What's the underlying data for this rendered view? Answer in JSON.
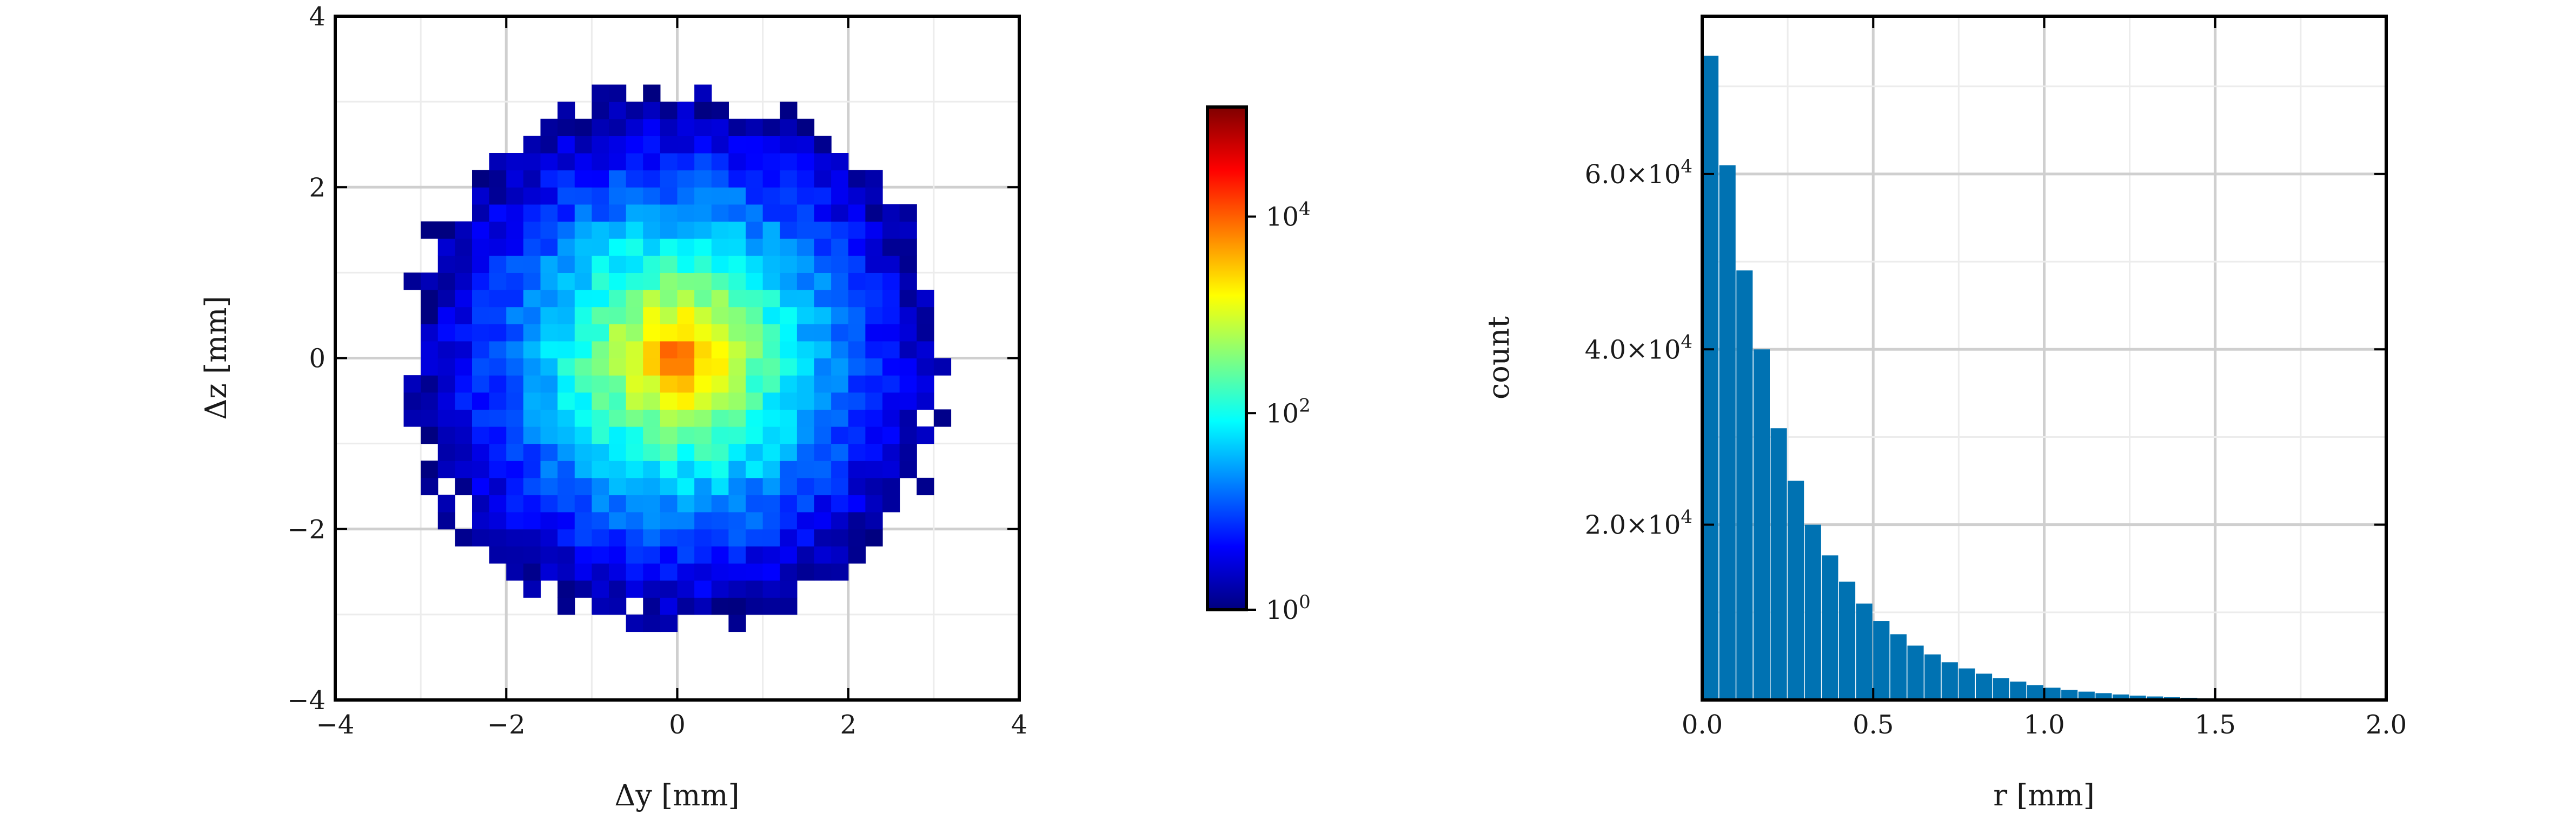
{
  "chart_data": [
    {
      "type": "heatmap",
      "xlabel": "Δy [mm]",
      "ylabel": "Δz [mm]",
      "xlim": [
        -4,
        4
      ],
      "ylim": [
        -4,
        4
      ],
      "xticks": [
        "−4",
        "−2",
        "0",
        "2",
        "4"
      ],
      "yticks": [
        "−4",
        "−2",
        "0",
        "2",
        "4"
      ],
      "grid": true,
      "bin_size_mm": 0.2,
      "distribution": {
        "shape": "2D Gaussian-like core with heavy tails",
        "center": [
          0,
          0
        ],
        "peak_count": 130000,
        "extent_radius_mm": 3.2
      },
      "colorbar": {
        "scale": "log",
        "colormap": "jet",
        "range": [
          1,
          130000
        ],
        "ticks": [
          {
            "value": 1,
            "label": "10",
            "exp": "0"
          },
          {
            "value": 100,
            "label": "10",
            "exp": "2"
          },
          {
            "value": 10000,
            "label": "10",
            "exp": "4"
          }
        ]
      }
    },
    {
      "type": "bar",
      "xlabel": "r [mm]",
      "ylabel": "count",
      "xlim": [
        0,
        2
      ],
      "ylim": [
        0,
        78000
      ],
      "xticks": [
        "0.0",
        "0.5",
        "1.0",
        "1.5",
        "2.0"
      ],
      "yticks": [
        {
          "value": 20000,
          "label": "2.0×10",
          "exp": "4"
        },
        {
          "value": 40000,
          "label": "4.0×10",
          "exp": "4"
        },
        {
          "value": 60000,
          "label": "6.0×10",
          "exp": "4"
        }
      ],
      "grid": true,
      "bar_color": "#0072b2",
      "bin_width": 0.05,
      "bin_starts": [
        0.0,
        0.05,
        0.1,
        0.15,
        0.2,
        0.25,
        0.3,
        0.35,
        0.4,
        0.45,
        0.5,
        0.55,
        0.6,
        0.65,
        0.7,
        0.75,
        0.8,
        0.85,
        0.9,
        0.95,
        1.0,
        1.05,
        1.1,
        1.15,
        1.2,
        1.25,
        1.3,
        1.35,
        1.4,
        1.45,
        1.5,
        1.55,
        1.6
      ],
      "values": [
        73500,
        61000,
        49000,
        40000,
        31000,
        25000,
        20000,
        16500,
        13500,
        11000,
        9000,
        7500,
        6200,
        5200,
        4300,
        3600,
        3000,
        2500,
        2100,
        1700,
        1400,
        1150,
        950,
        780,
        630,
        500,
        400,
        320,
        250,
        190,
        140,
        100,
        70
      ]
    }
  ]
}
